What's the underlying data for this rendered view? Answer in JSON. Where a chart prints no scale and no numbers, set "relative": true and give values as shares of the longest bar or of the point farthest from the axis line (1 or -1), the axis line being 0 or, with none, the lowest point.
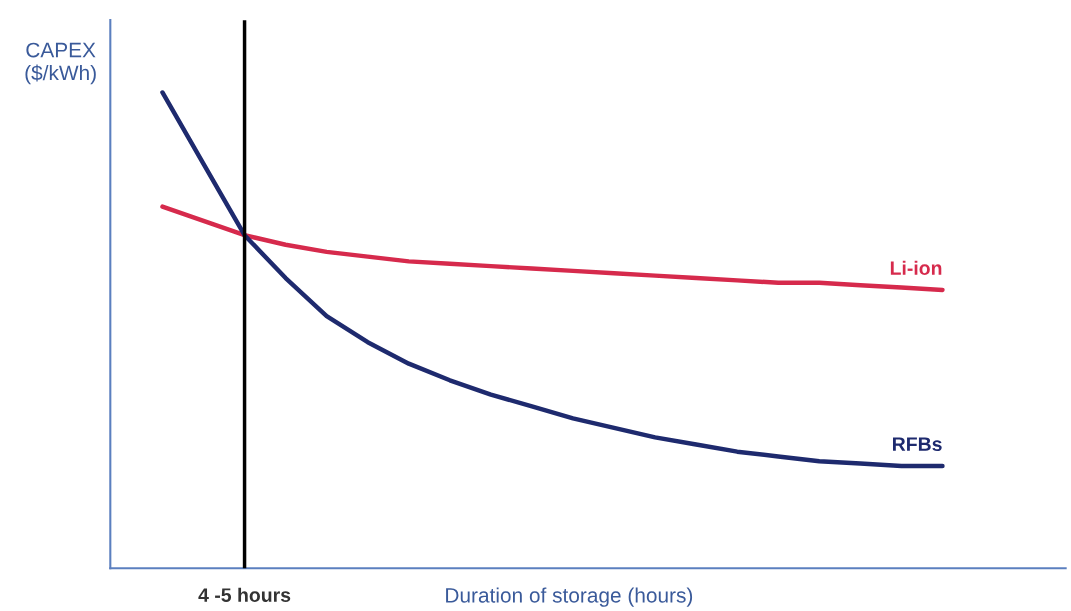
{
  "chart_data": {
    "type": "line",
    "relative": true,
    "xlabel": "Duration of storage (hours)",
    "ylabel": "CAPEX\n($/kWh)",
    "categories": [
      null,
      null,
      null,
      null,
      null,
      null,
      null,
      null,
      null,
      null,
      null,
      null,
      null,
      null,
      null,
      null,
      null,
      null,
      null,
      null
    ],
    "series": [
      {
        "name": "Li-ion",
        "color": "#d62a4c",
        "values": [
          0.76,
          0.73,
          0.7,
          0.68,
          0.665,
          0.655,
          0.645,
          0.64,
          0.635,
          0.63,
          0.625,
          0.62,
          0.615,
          0.61,
          0.605,
          0.6,
          0.6,
          0.595,
          0.59,
          0.585
        ]
      },
      {
        "name": "RFBs",
        "color": "#1e2a6e",
        "values": [
          1.0,
          0.85,
          0.7,
          0.61,
          0.53,
          0.475,
          0.43,
          0.395,
          0.365,
          0.34,
          0.315,
          0.295,
          0.275,
          0.26,
          0.245,
          0.235,
          0.225,
          0.22,
          0.215,
          0.215
        ]
      }
    ],
    "annotations": [
      "4 -5 hours"
    ],
    "legend": false,
    "marker": "none",
    "line_style": "solid"
  }
}
